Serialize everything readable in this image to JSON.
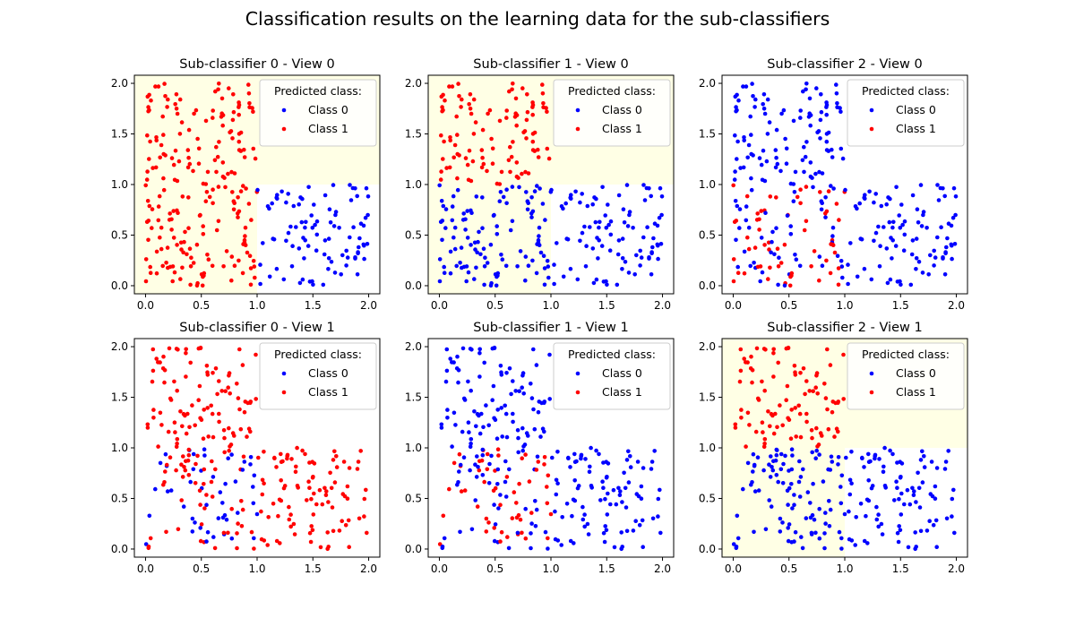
{
  "figure": {
    "title": "Classification results on the learning data for the sub-classifiers"
  },
  "colors": {
    "class_0": "#0000ff",
    "class_1": "#ff0000",
    "region_shade": "#ffffe5",
    "background": "#ffffff",
    "axes_edge": "#000000",
    "legend_edge": "#cccccc"
  },
  "chart_data": [
    {
      "type": "scatter",
      "title": "Sub-classifier 0 - View 0",
      "xlim": [
        -0.1,
        2.1
      ],
      "ylim": [
        -0.08,
        2.08
      ],
      "xticks": [
        "0.0",
        "0.5",
        "1.0",
        "1.5",
        "2.0"
      ],
      "yticks": [
        "0.0",
        "0.5",
        "1.0",
        "1.5",
        "2.0"
      ],
      "grid": false,
      "legend": {
        "title": "Predicted class:",
        "placement": "top-right",
        "entries": [
          "Class 0",
          "Class 1"
        ]
      },
      "highlighted_region": "L-shaped: x in [0,1] for all y, plus y in [1,2] for all x",
      "rule": "region",
      "seed": 11
    },
    {
      "type": "scatter",
      "title": "Sub-classifier 1 - View 0",
      "xlim": [
        -0.1,
        2.1
      ],
      "ylim": [
        -0.08,
        2.08
      ],
      "xticks": [
        "0.0",
        "0.5",
        "1.0",
        "1.5",
        "2.0"
      ],
      "yticks": [
        "0.0",
        "0.5",
        "1.0",
        "1.5",
        "2.0"
      ],
      "grid": false,
      "legend": {
        "title": "Predicted class:",
        "placement": "top-right",
        "entries": [
          "Class 0",
          "Class 1"
        ]
      },
      "highlighted_region": "L-shaped: x in [0,1] for all y, plus y in [1,2] for all x",
      "rule": "top-left",
      "seed": 11
    },
    {
      "type": "scatter",
      "title": "Sub-classifier 2 - View 0",
      "xlim": [
        -0.1,
        2.1
      ],
      "ylim": [
        -0.08,
        2.08
      ],
      "xticks": [
        "0.0",
        "0.5",
        "1.0",
        "1.5",
        "2.0"
      ],
      "yticks": [
        "0.0",
        "0.5",
        "1.0",
        "1.5",
        "2.0"
      ],
      "grid": false,
      "legend": {
        "title": "Predicted class:",
        "placement": "top-right",
        "entries": [
          "Class 0",
          "Class 1"
        ]
      },
      "highlighted_region": "none",
      "rule": "mixed-bottom-left",
      "seed": 11
    },
    {
      "type": "scatter",
      "title": "Sub-classifier 0 - View 1",
      "xlim": [
        -0.1,
        2.1
      ],
      "ylim": [
        -0.08,
        2.08
      ],
      "xticks": [
        "0.0",
        "0.5",
        "1.0",
        "1.5",
        "2.0"
      ],
      "yticks": [
        "0.0",
        "0.5",
        "1.0",
        "1.5",
        "2.0"
      ],
      "grid": false,
      "legend": {
        "title": "Predicted class:",
        "placement": "top-right",
        "entries": [
          "Class 0",
          "Class 1"
        ]
      },
      "highlighted_region": "none",
      "rule": "mostly-red",
      "seed": 29
    },
    {
      "type": "scatter",
      "title": "Sub-classifier 1 - View 1",
      "xlim": [
        -0.1,
        2.1
      ],
      "ylim": [
        -0.08,
        2.08
      ],
      "xticks": [
        "0.0",
        "0.5",
        "1.0",
        "1.5",
        "2.0"
      ],
      "yticks": [
        "0.0",
        "0.5",
        "1.0",
        "1.5",
        "2.0"
      ],
      "grid": false,
      "legend": {
        "title": "Predicted class:",
        "placement": "top-right",
        "entries": [
          "Class 0",
          "Class 1"
        ]
      },
      "highlighted_region": "none",
      "rule": "mixed-bottom-left",
      "seed": 29
    },
    {
      "type": "scatter",
      "title": "Sub-classifier 2 - View 1",
      "xlim": [
        -0.1,
        2.1
      ],
      "ylim": [
        -0.08,
        2.08
      ],
      "xticks": [
        "0.0",
        "0.5",
        "1.0",
        "1.5",
        "2.0"
      ],
      "yticks": [
        "0.0",
        "0.5",
        "1.0",
        "1.5",
        "2.0"
      ],
      "grid": false,
      "legend": {
        "title": "Predicted class:",
        "placement": "top-right",
        "entries": [
          "Class 0",
          "Class 1"
        ]
      },
      "highlighted_region": "L-shaped: x in [0,1] for all y, plus y in [1,2] for all x",
      "rule": "top-left",
      "seed": 29
    }
  ]
}
